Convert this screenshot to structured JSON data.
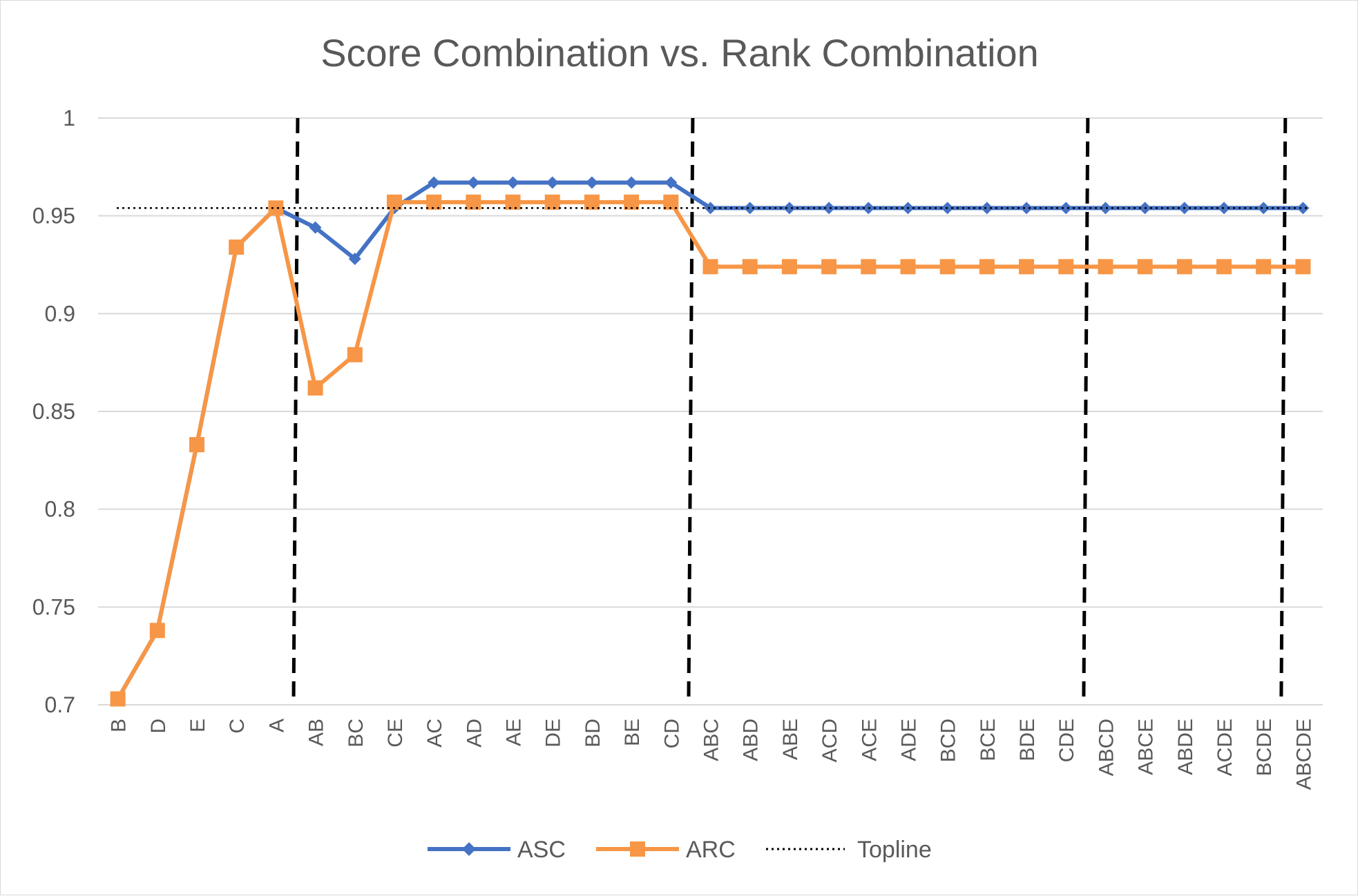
{
  "chart_data": {
    "type": "line",
    "title": "Score Combination vs. Rank Combination",
    "xlabel": "",
    "ylabel": "",
    "ylim": [
      0.7,
      1.0
    ],
    "yticks": [
      "0.7",
      "0.75",
      "0.8",
      "0.85",
      "0.9",
      "0.95",
      "1"
    ],
    "grid": true,
    "legend_position": "bottom",
    "categories": [
      "B",
      "D",
      "E",
      "C",
      "A",
      "AB",
      "BC",
      "CE",
      "AC",
      "AD",
      "AE",
      "DE",
      "BD",
      "BE",
      "CD",
      "ABC",
      "ABD",
      "ABE",
      "ACD",
      "ACE",
      "ADE",
      "BCD",
      "BCE",
      "BDE",
      "CDE",
      "ABCD",
      "ABCE",
      "ABDE",
      "ACDE",
      "BCDE",
      "ABCDE"
    ],
    "series": [
      {
        "name": "ASC",
        "color": "#4472c4",
        "marker": "diamond",
        "values": [
          0.703,
          0.738,
          0.833,
          0.934,
          0.954,
          0.944,
          0.928,
          0.954,
          0.967,
          0.967,
          0.967,
          0.967,
          0.967,
          0.967,
          0.967,
          0.954,
          0.954,
          0.954,
          0.954,
          0.954,
          0.954,
          0.954,
          0.954,
          0.954,
          0.954,
          0.954,
          0.954,
          0.954,
          0.954,
          0.954,
          0.954
        ]
      },
      {
        "name": "ARC",
        "color": "#f79646",
        "marker": "square",
        "values": [
          0.703,
          0.738,
          0.833,
          0.934,
          0.954,
          0.862,
          0.879,
          0.957,
          0.957,
          0.957,
          0.957,
          0.957,
          0.957,
          0.957,
          0.957,
          0.924,
          0.924,
          0.924,
          0.924,
          0.924,
          0.924,
          0.924,
          0.924,
          0.924,
          0.924,
          0.924,
          0.924,
          0.924,
          0.924,
          0.924,
          0.924
        ]
      },
      {
        "name": "Topline",
        "color": "#000000",
        "style": "dotted",
        "value": 0.954
      }
    ],
    "separators_after": [
      "A",
      "CD",
      "CDE",
      "BCDE"
    ]
  }
}
